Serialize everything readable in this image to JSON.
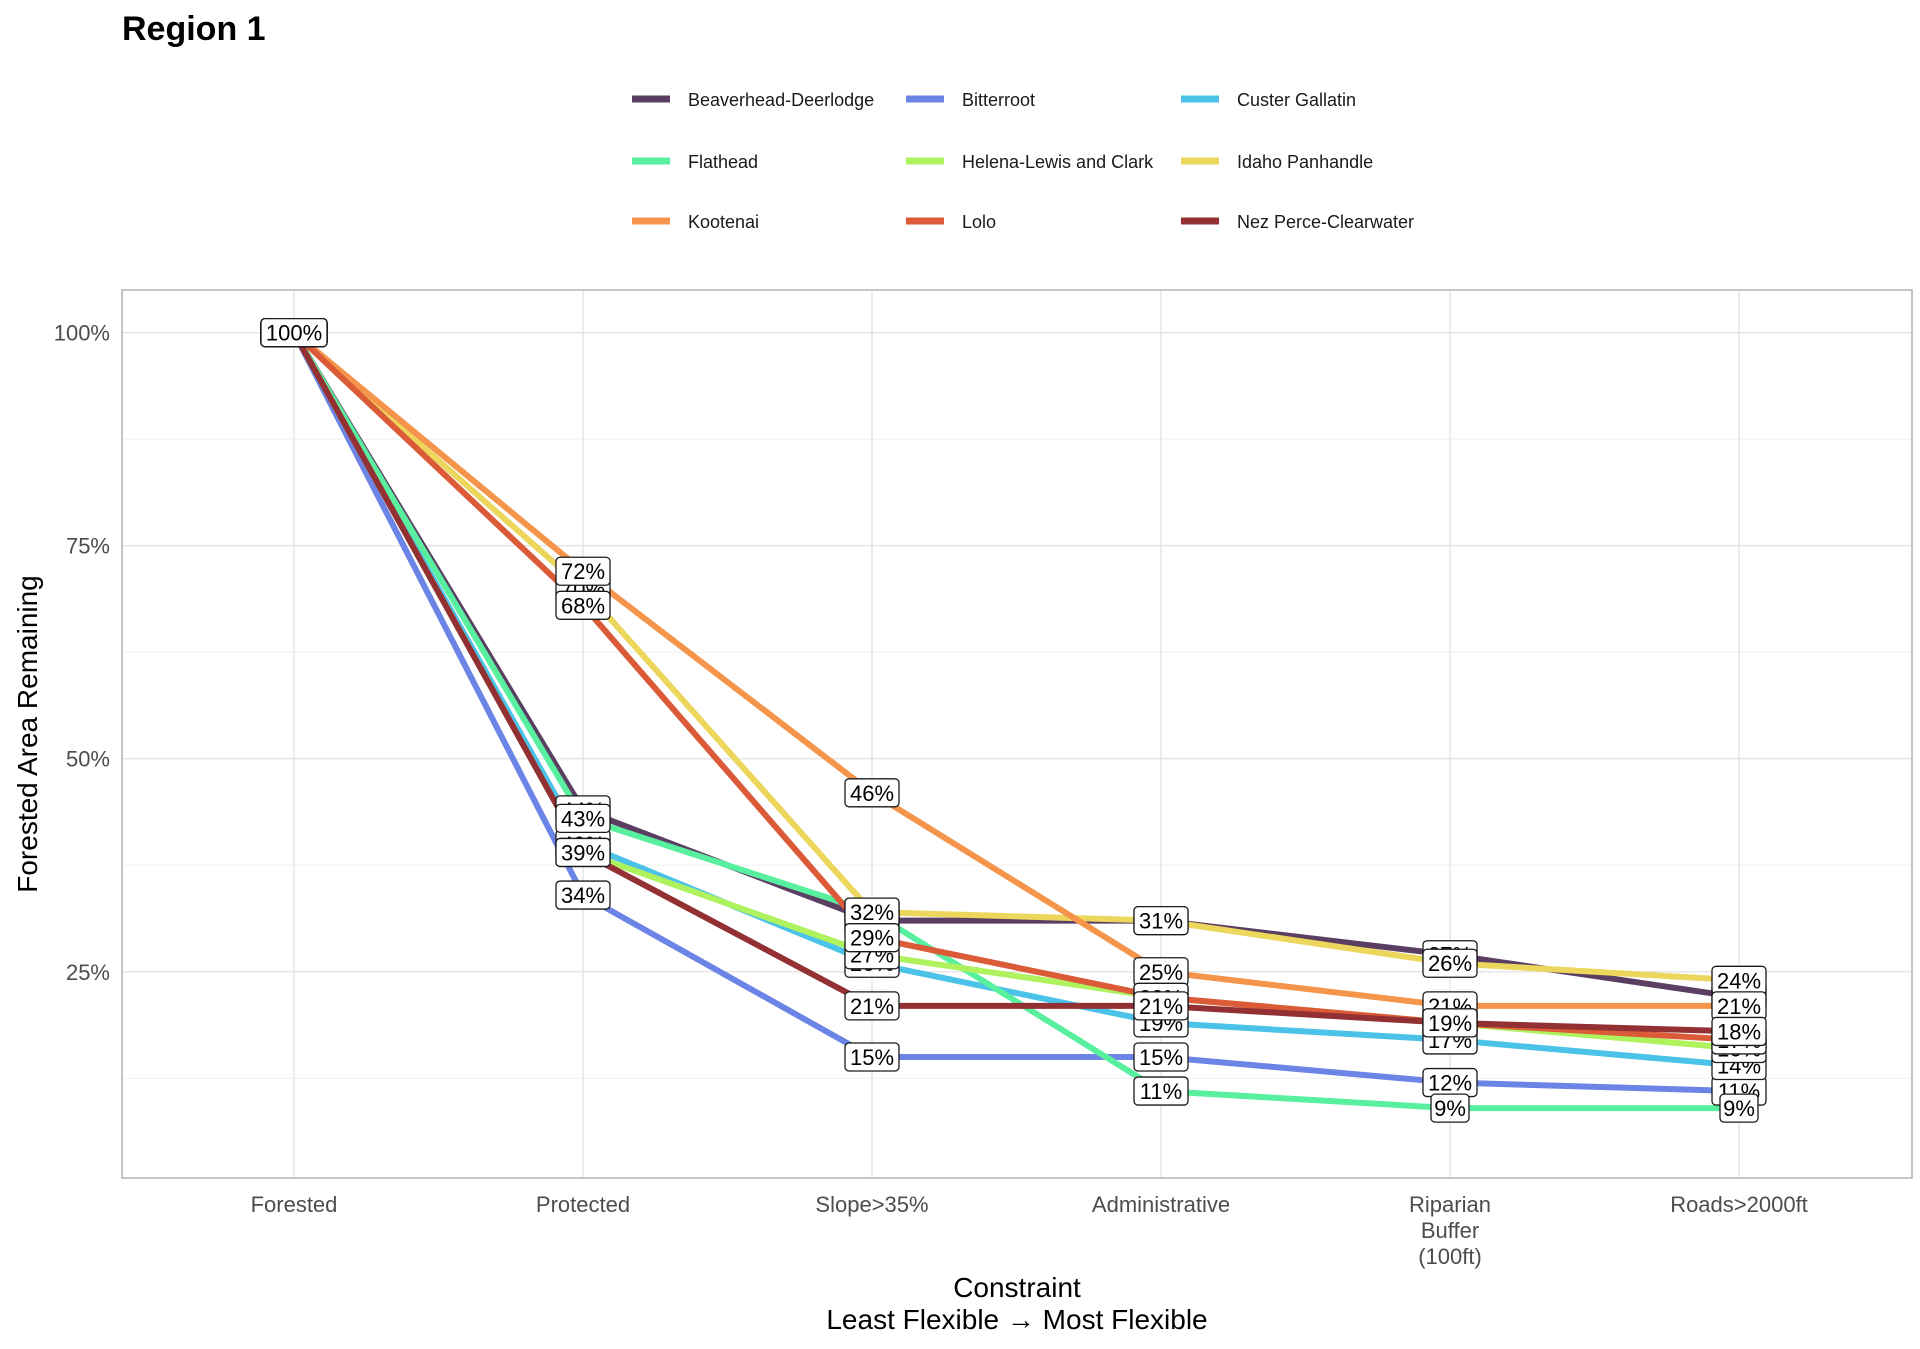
{
  "chart_data": {
    "type": "line",
    "title": "Region 1",
    "xlabel": [
      "Constraint",
      "Least Flexible → Most Flexible"
    ],
    "ylabel": "Forested Area Remaining",
    "categories": [
      [
        "Forested"
      ],
      [
        "Protected"
      ],
      [
        "Slope>35%"
      ],
      [
        "Administrative"
      ],
      [
        "Riparian",
        "Buffer",
        "(100ft)"
      ],
      [
        "Roads>2000ft"
      ]
    ],
    "yticks": [
      {
        "value": 25,
        "label": "25%"
      },
      {
        "value": 50,
        "label": "50%"
      },
      {
        "value": 75,
        "label": "75%"
      },
      {
        "value": 100,
        "label": "100%"
      }
    ],
    "ylim": [
      0.8,
      105
    ],
    "grid": true,
    "legend_position": "top",
    "series": [
      {
        "name": "Beaverhead-Deerlodge",
        "color": "#5b3f63",
        "values": [
          100,
          44,
          31,
          31,
          27,
          22
        ],
        "labels": [
          "100%",
          "44%",
          "31%",
          "31%",
          "27%",
          "22%"
        ]
      },
      {
        "name": "Bitterroot",
        "color": "#6c84e6",
        "values": [
          100,
          34,
          15,
          15,
          12,
          11
        ],
        "labels": [
          "100%",
          "34%",
          "15%",
          "15%",
          "12%",
          "11%"
        ]
      },
      {
        "name": "Custer Gallatin",
        "color": "#4bc3e8",
        "values": [
          100,
          40,
          26,
          19,
          17,
          14
        ],
        "labels": [
          "100%",
          "40%",
          "26%",
          "19%",
          "17%",
          "14%"
        ]
      },
      {
        "name": "Flathead",
        "color": "#58f09e",
        "values": [
          100,
          43,
          32,
          11,
          9,
          9
        ],
        "labels": [
          "100%",
          "43%",
          "32%",
          "11%",
          "9%",
          "9%"
        ]
      },
      {
        "name": "Helena-Lewis and Clark",
        "color": "#aef25e",
        "values": [
          100,
          39,
          27,
          22,
          19,
          16
        ],
        "labels": [
          "100%",
          "39%",
          "27%",
          "22%",
          "19%",
          "16%"
        ]
      },
      {
        "name": "Idaho Panhandle",
        "color": "#ecd75c",
        "values": [
          100,
          70,
          32,
          31,
          26,
          24
        ],
        "labels": [
          "100%",
          "70%",
          "32%",
          "31%",
          "26%",
          "24%"
        ]
      },
      {
        "name": "Kootenai",
        "color": "#f5954b",
        "values": [
          100,
          72,
          46,
          25,
          21,
          21
        ],
        "labels": [
          "100%",
          "72%",
          "46%",
          "25%",
          "21%",
          "21%"
        ]
      },
      {
        "name": "Lolo",
        "color": "#db5a38",
        "values": [
          100,
          68,
          29,
          22,
          19,
          17
        ],
        "labels": [
          "100%",
          "68%",
          "29%",
          "22%",
          "19%",
          "17%"
        ]
      },
      {
        "name": "Nez Perce-Clearwater",
        "color": "#923034",
        "values": [
          100,
          39,
          21,
          21,
          19,
          18
        ],
        "labels": [
          "100%",
          "39%",
          "21%",
          "21%",
          "19%",
          "18%"
        ]
      }
    ]
  }
}
